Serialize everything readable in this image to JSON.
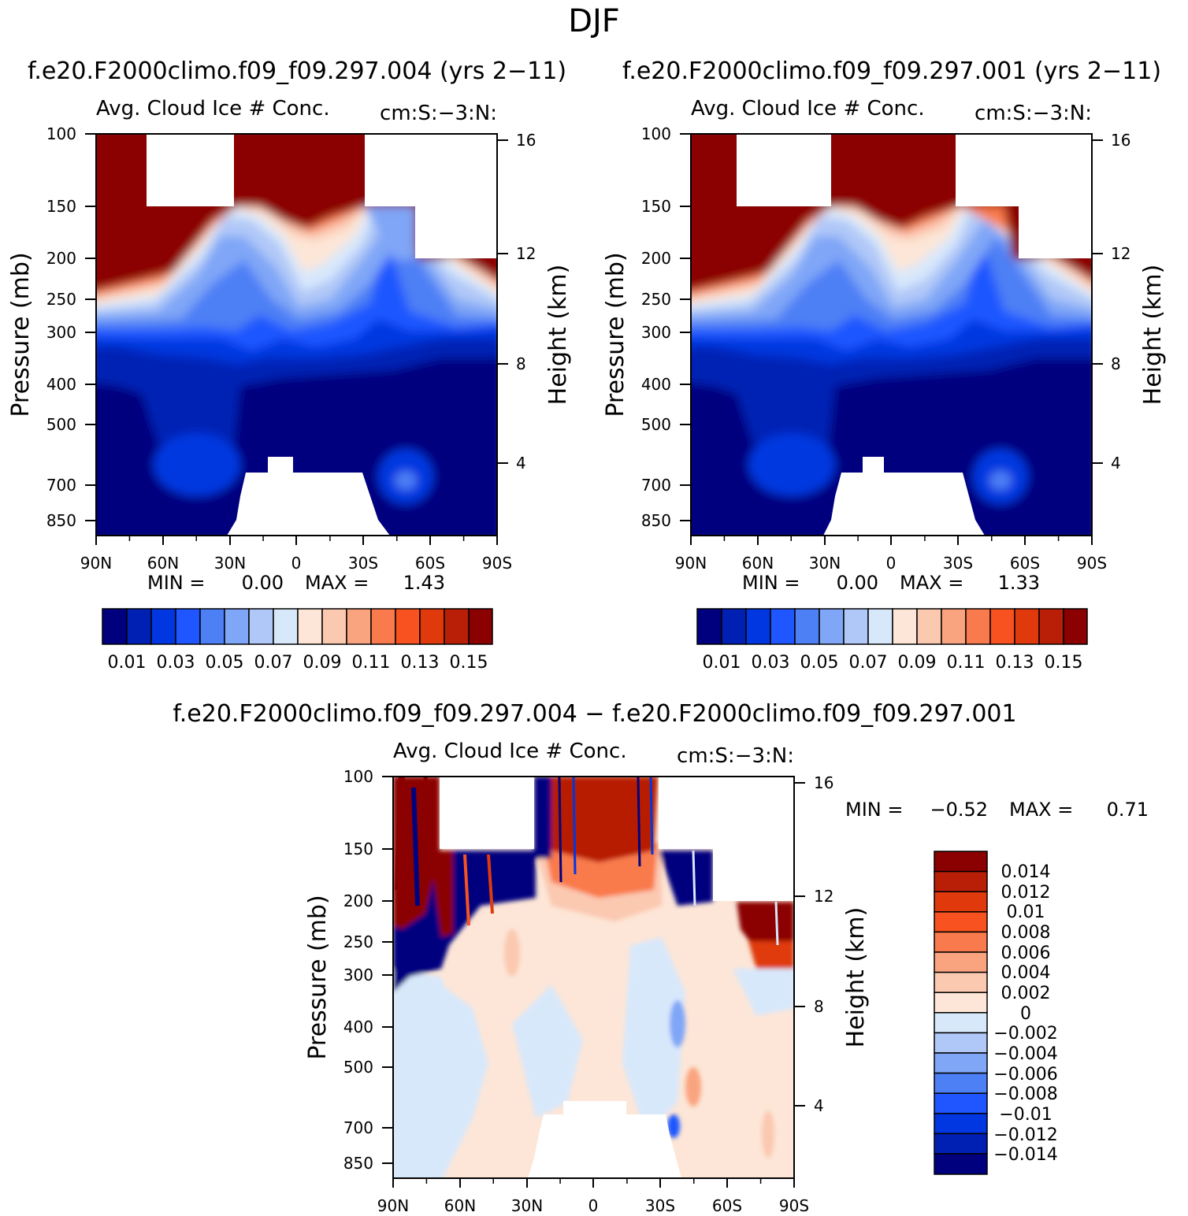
{
  "figure_title": "DJF",
  "colors": {
    "abs_levels": [
      "#00007f",
      "#0020b4",
      "#0037e0",
      "#1f56ff",
      "#4d7ff5",
      "#7fa6f7",
      "#b0c8f8",
      "#d8e8fb",
      "#fde6d7",
      "#fbc8b0",
      "#f9a47f",
      "#f97a4c",
      "#f85220",
      "#e03a0c",
      "#b81f06",
      "#8b0000"
    ],
    "diff_levels": [
      "#00007f",
      "#0020b4",
      "#0037e0",
      "#1f56ff",
      "#4d7ff5",
      "#7fa6f7",
      "#b0c8f8",
      "#d8e8fb",
      "#fde6d7",
      "#fbc8b0",
      "#f9a47f",
      "#f97a4c",
      "#f85220",
      "#e03a0c",
      "#b81f06",
      "#8b0000"
    ]
  },
  "chart_data": [
    {
      "type": "heatmap",
      "id": "panel1",
      "case_title": "f.e20.F2000climo.f09_f09.297.004 (yrs 2-11)",
      "left_title": "Avg. Cloud Ice # Conc.",
      "right_title": "cm:S:-3:N:",
      "ylabel": "Pressure (mb)",
      "ylabel_right": "Height (km)",
      "x_ticks": [
        "90N",
        "60N",
        "30N",
        "0",
        "30S",
        "60S",
        "90S"
      ],
      "y_ticks": [
        "100",
        "150",
        "200",
        "250",
        "300",
        "400",
        "500",
        "700",
        "850"
      ],
      "y_right_ticks": [
        "16",
        "12",
        "8",
        "4"
      ],
      "ylim": [
        1000,
        100
      ],
      "min_label": "MIN =",
      "min_value": "0.00",
      "max_label": "MAX =",
      "max_value": "1.43",
      "colorbar_labels": [
        "0.01",
        "0.03",
        "0.05",
        "0.07",
        "0.09",
        "0.11",
        "0.13",
        "0.15"
      ]
    },
    {
      "type": "heatmap",
      "id": "panel2",
      "case_title": "f.e20.F2000climo.f09_f09.297.001 (yrs 2-11)",
      "left_title": "Avg. Cloud Ice # Conc.",
      "right_title": "cm:S:-3:N:",
      "ylabel": "Pressure (mb)",
      "ylabel_right": "Height (km)",
      "x_ticks": [
        "90N",
        "60N",
        "30N",
        "0",
        "30S",
        "60S",
        "90S"
      ],
      "y_ticks": [
        "100",
        "150",
        "200",
        "250",
        "300",
        "400",
        "500",
        "700",
        "850"
      ],
      "y_right_ticks": [
        "16",
        "12",
        "8",
        "4"
      ],
      "ylim": [
        1000,
        100
      ],
      "min_label": "MIN =",
      "min_value": "0.00",
      "max_label": "MAX =",
      "max_value": "1.33",
      "colorbar_labels": [
        "0.01",
        "0.03",
        "0.05",
        "0.07",
        "0.09",
        "0.11",
        "0.13",
        "0.15"
      ]
    },
    {
      "type": "heatmap",
      "id": "panel3",
      "case_title": "f.e20.F2000climo.f09_f09.297.004 - f.e20.F2000climo.f09_f09.297.001",
      "left_title": "Avg. Cloud Ice # Conc.",
      "right_title": "cm:S:-3:N:",
      "ylabel": "Pressure (mb)",
      "ylabel_right": "Height (km)",
      "x_ticks": [
        "90N",
        "60N",
        "30N",
        "0",
        "30S",
        "60S",
        "90S"
      ],
      "y_ticks": [
        "100",
        "150",
        "200",
        "250",
        "300",
        "400",
        "500",
        "700",
        "850"
      ],
      "y_right_ticks": [
        "16",
        "12",
        "8",
        "4"
      ],
      "ylim": [
        1000,
        100
      ],
      "min_label": "MIN =",
      "min_value": "-0.52",
      "max_label": "MAX =",
      "max_value": "0.71",
      "colorbar_labels": [
        "0.014",
        "0.012",
        "0.01",
        "0.008",
        "0.006",
        "0.004",
        "0.002",
        "0",
        "-0.002",
        "-0.004",
        "-0.006",
        "-0.008",
        "-0.01",
        "-0.012",
        "-0.014"
      ]
    }
  ]
}
